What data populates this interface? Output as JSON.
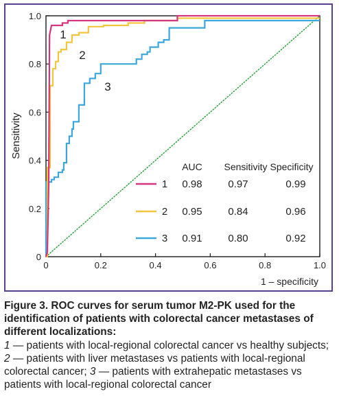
{
  "chart_data": {
    "type": "line",
    "xlabel": "1 – specificity",
    "ylabel": "Sensitivity",
    "xlim": [
      0,
      1
    ],
    "ylim": [
      0,
      1
    ],
    "x_ticks": [
      "0",
      "0.2",
      "0.4",
      "0.6",
      "0.8",
      "1.0"
    ],
    "y_ticks": [
      "0",
      "0.2",
      "0.4",
      "0.6",
      "0.8",
      "1.0"
    ],
    "grid": false,
    "legend_placement": "bottom-right",
    "legend_headers": [
      "AUC",
      "Sensitivity",
      "Specificity"
    ],
    "reference_line": {
      "color": "#22a035",
      "style": "dotted",
      "x": [
        0,
        1
      ],
      "y": [
        0,
        1
      ]
    },
    "series": [
      {
        "name": "1",
        "color": "#d6347f",
        "auc": "0.98",
        "sensitivity": "0.97",
        "specificity": "0.99",
        "curve_label": "1",
        "x": [
          0,
          0.005,
          0.01,
          0.013,
          0.02,
          0.04,
          0.06,
          0.06,
          0.08,
          0.08,
          0.48,
          0.48,
          1.0
        ],
        "y": [
          0,
          0.02,
          0.3,
          0.92,
          0.96,
          0.96,
          0.96,
          0.97,
          0.97,
          0.98,
          0.98,
          1.0,
          1.0
        ]
      },
      {
        "name": "2",
        "color": "#f2c53d",
        "auc": "0.95",
        "sensitivity": "0.84",
        "specificity": "0.96",
        "curve_label": "2",
        "x": [
          0,
          0.005,
          0.005,
          0.015,
          0.015,
          0.025,
          0.025,
          0.035,
          0.035,
          0.045,
          0.045,
          0.055,
          0.055,
          0.075,
          0.075,
          0.095,
          0.095,
          0.12,
          0.12,
          0.155,
          0.155,
          0.21,
          0.21,
          0.3,
          0.3,
          0.36,
          0.36,
          0.48,
          0.48,
          1.0
        ],
        "y": [
          0,
          0,
          0.37,
          0.37,
          0.71,
          0.71,
          0.78,
          0.78,
          0.81,
          0.81,
          0.85,
          0.85,
          0.86,
          0.86,
          0.89,
          0.89,
          0.92,
          0.92,
          0.93,
          0.93,
          0.955,
          0.955,
          0.96,
          0.96,
          0.97,
          0.97,
          0.98,
          0.98,
          0.99,
          0.99
        ]
      },
      {
        "name": "3",
        "color": "#3da7dc",
        "auc": "0.91",
        "sensitivity": "0.80",
        "specificity": "0.92",
        "curve_label": "3",
        "x": [
          0,
          0,
          0.02,
          0.02,
          0.03,
          0.03,
          0.045,
          0.045,
          0.06,
          0.06,
          0.065,
          0.065,
          0.075,
          0.075,
          0.085,
          0.085,
          0.095,
          0.095,
          0.1,
          0.1,
          0.12,
          0.12,
          0.14,
          0.14,
          0.16,
          0.16,
          0.18,
          0.18,
          0.2,
          0.2,
          0.33,
          0.33,
          0.35,
          0.35,
          0.37,
          0.37,
          0.38,
          0.38,
          0.41,
          0.41,
          0.43,
          0.43,
          0.45,
          0.45,
          0.58,
          0.58,
          1.0
        ],
        "y": [
          0,
          0.31,
          0.31,
          0.32,
          0.32,
          0.33,
          0.33,
          0.35,
          0.35,
          0.36,
          0.36,
          0.39,
          0.39,
          0.47,
          0.47,
          0.5,
          0.5,
          0.53,
          0.53,
          0.56,
          0.56,
          0.63,
          0.63,
          0.72,
          0.72,
          0.74,
          0.74,
          0.76,
          0.76,
          0.8,
          0.8,
          0.82,
          0.82,
          0.84,
          0.84,
          0.85,
          0.85,
          0.87,
          0.87,
          0.89,
          0.89,
          0.9,
          0.9,
          0.95,
          0.95,
          0.98,
          0.98
        ]
      }
    ]
  },
  "caption": {
    "title": "Figure 3. ROC curves for serum tumor M2-PK used for the identification of patients with colorectal cancer metastases of different localizations:",
    "items": [
      {
        "num": "1",
        "text": " — patients with local-regional colorectal cancer vs healthy subjects; "
      },
      {
        "num": "2",
        "text": " — patients with liver metastases vs patients with local-regional colorectal cancer; "
      },
      {
        "num": "3",
        "text": " — patients with extrahepatic metastases vs patients with local-regional colorectal cancer"
      }
    ]
  }
}
